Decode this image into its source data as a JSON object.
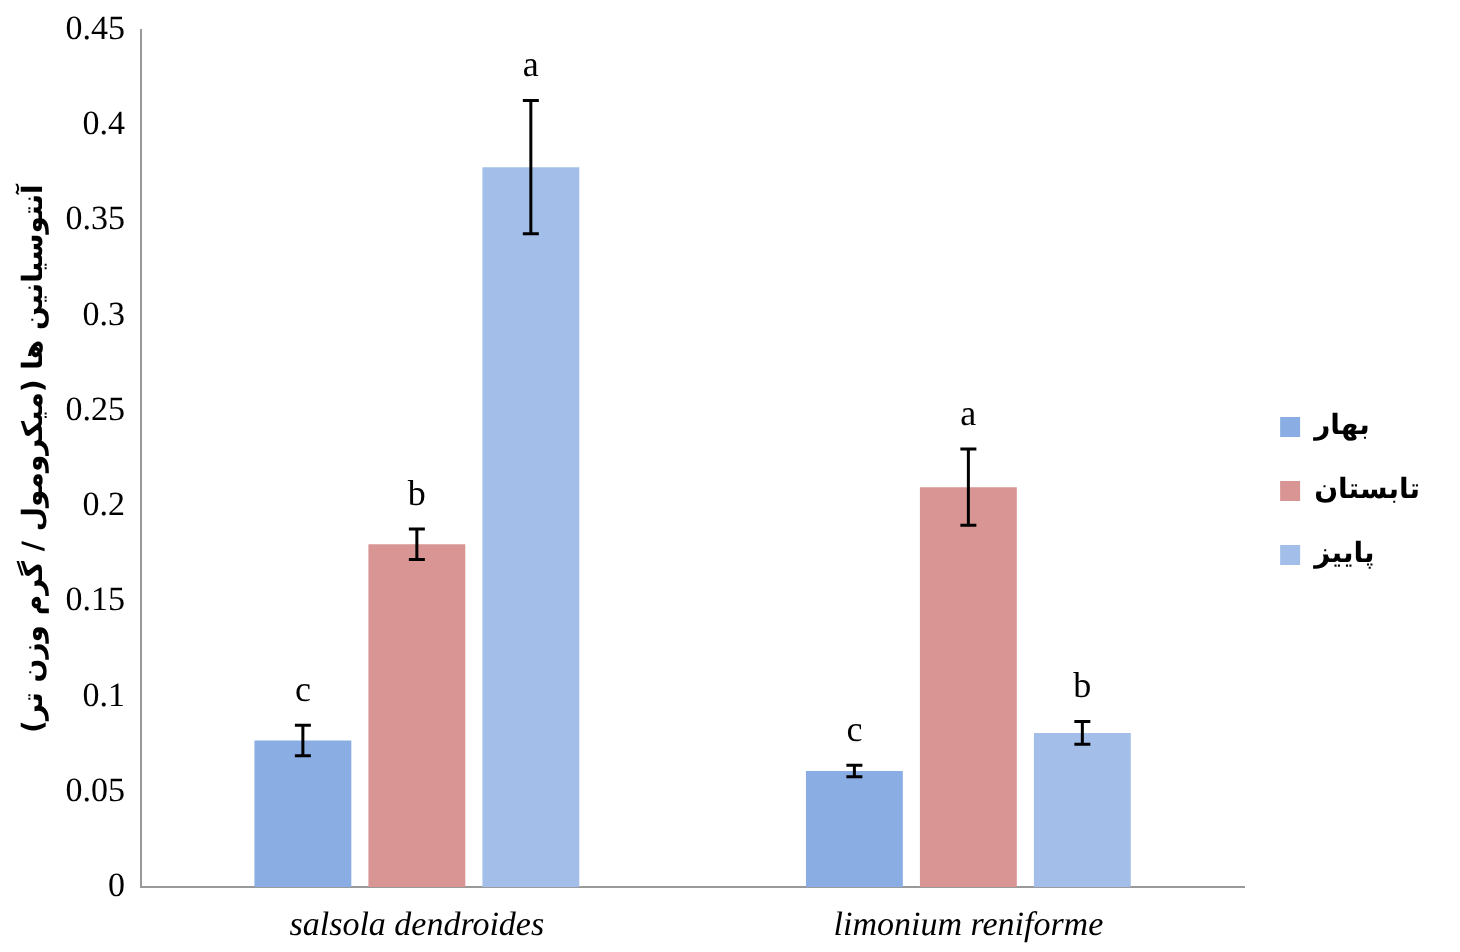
{
  "chart_data": {
    "type": "bar",
    "ylabel": "آنتوسیانین ها (میکرومول / گرم وزن تر)",
    "categories": [
      "salsola dendroides",
      "limonium reniforme"
    ],
    "series": [
      {
        "name": "بهار",
        "color": "#8aaee3",
        "values": [
          0.077,
          0.061
        ],
        "errors": [
          0.008,
          0.003
        ],
        "value_labels": [
          "c",
          "c"
        ]
      },
      {
        "name": "تابستان",
        "color": "#d99494",
        "values": [
          0.18,
          0.21
        ],
        "errors": [
          0.008,
          0.02
        ],
        "value_labels": [
          "b",
          "a"
        ]
      },
      {
        "name": "پاییز",
        "color": "#a3bfe9",
        "values": [
          0.378,
          0.081
        ],
        "errors": [
          0.035,
          0.006
        ],
        "value_labels": [
          "a",
          "b"
        ]
      }
    ],
    "ylim": [
      0,
      0.45
    ],
    "yticks": [
      0,
      0.05,
      0.1,
      0.15,
      0.2,
      0.25,
      0.3,
      0.35,
      0.4,
      0.45
    ],
    "grid": false,
    "legend": "right"
  }
}
